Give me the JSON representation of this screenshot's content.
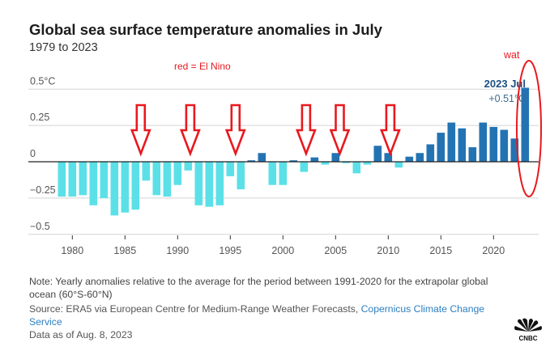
{
  "title": "Global sea surface temperature anomalies in July",
  "subtitle": "1979 to 2023",
  "annotations": {
    "legend_note": "red = El Nino",
    "wat": "wat",
    "highlight_label": "2023 Jul",
    "highlight_value": "+0.51°C"
  },
  "footer": {
    "note": "Note: Yearly anomalies relative to the average for the period between 1991-2020 for the extrapolar global ocean (60°S-60°N)",
    "source_prefix": "Source: ERA5 via European Centre for Medium-Range Weather Forecasts, ",
    "source_link": "Copernicus Climate Change Service",
    "data_as_of": "Data as of Aug. 8, 2023",
    "logo": "CNBC"
  },
  "colors": {
    "negative": "#5BE0E8",
    "positive": "#2373B3",
    "annotation": "#E8191F",
    "highlight": "#1C4F82"
  },
  "el_nino_arrow_years": [
    1986.5,
    1991.2,
    1995.5,
    2002.2,
    2005.4,
    2010.2
  ],
  "chart_data": {
    "type": "bar",
    "title": "Global sea surface temperature anomalies in July",
    "xlabel": "",
    "ylabel": "°C",
    "ylim": [
      -0.5,
      0.5
    ],
    "yticks": [
      0.5,
      0.25,
      0,
      -0.25,
      -0.5
    ],
    "ytick_labels": [
      "0.5°C",
      "0.25",
      "0",
      "−0.25",
      "−0.5"
    ],
    "xticks": [
      1980,
      1985,
      1990,
      1995,
      2000,
      2005,
      2010,
      2015,
      2020
    ],
    "xtick_labels": [
      "1980",
      "1985",
      "1990",
      "1995",
      "2000",
      "2005",
      "2010",
      "2015",
      "2020"
    ],
    "grid": true,
    "categories": [
      1979,
      1980,
      1981,
      1982,
      1983,
      1984,
      1985,
      1986,
      1987,
      1988,
      1989,
      1990,
      1991,
      1992,
      1993,
      1994,
      1995,
      1996,
      1997,
      1998,
      1999,
      2000,
      2001,
      2002,
      2003,
      2004,
      2005,
      2006,
      2007,
      2008,
      2009,
      2010,
      2011,
      2012,
      2013,
      2014,
      2015,
      2016,
      2017,
      2018,
      2019,
      2020,
      2021,
      2022,
      2023
    ],
    "values": [
      -0.24,
      -0.24,
      -0.23,
      -0.3,
      -0.25,
      -0.37,
      -0.35,
      -0.33,
      -0.13,
      -0.23,
      -0.24,
      -0.16,
      -0.06,
      -0.3,
      -0.31,
      -0.3,
      -0.1,
      -0.19,
      0.01,
      0.06,
      -0.16,
      -0.16,
      0.01,
      -0.07,
      0.03,
      -0.02,
      0.06,
      -0.01,
      -0.08,
      -0.02,
      0.11,
      0.06,
      -0.04,
      0.035,
      0.06,
      0.12,
      0.2,
      0.27,
      0.23,
      0.1,
      0.27,
      0.24,
      0.22,
      0.16,
      0.51
    ]
  }
}
